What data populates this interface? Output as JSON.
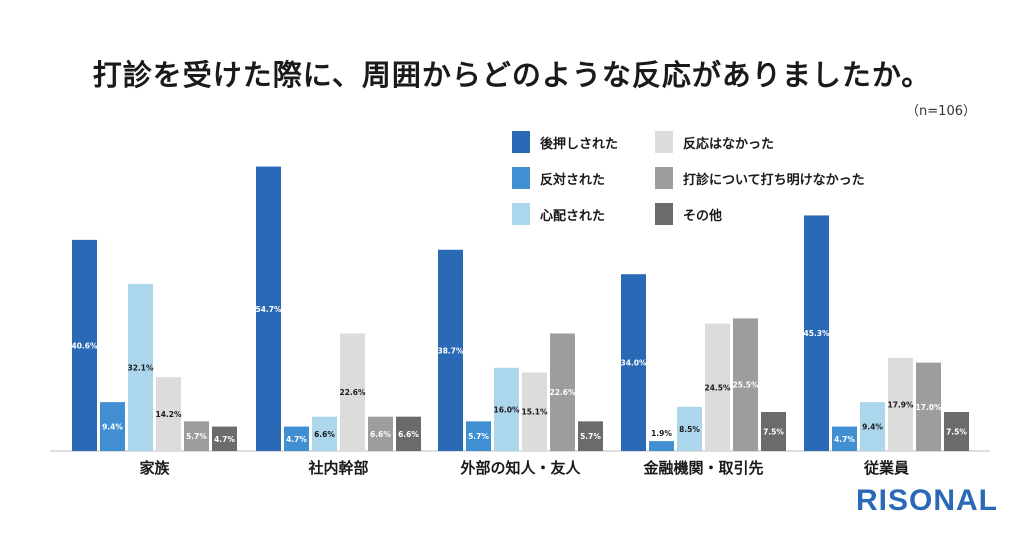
{
  "title": "打診を受けた際に、周囲からどのような反応がありましたか。",
  "sample_size": "（n=106）",
  "logo": "RISONAL",
  "chart_data": {
    "type": "bar",
    "ylim": [
      0,
      60
    ],
    "grid": false,
    "legend_position": "top-right",
    "categories": [
      "家族",
      "社内幹部",
      "外部の知人・友人",
      "金融機関・取引先",
      "従業員"
    ],
    "series": [
      {
        "name": "後押しされた",
        "color": "#2a69b5",
        "label_color": "#ffffff",
        "values": [
          40.6,
          54.7,
          38.7,
          34.0,
          45.3
        ]
      },
      {
        "name": "反対された",
        "color": "#3f8fd2",
        "label_color": "#ffffff",
        "values": [
          9.4,
          4.7,
          5.7,
          1.9,
          4.7
        ]
      },
      {
        "name": "心配された",
        "color": "#acd6ec",
        "label_color": "#1a1a1a",
        "values": [
          32.1,
          6.6,
          16.0,
          8.5,
          9.4
        ]
      },
      {
        "name": "反応はなかった",
        "color": "#dcdcdc",
        "label_color": "#1a1a1a",
        "values": [
          14.2,
          22.6,
          15.1,
          24.5,
          17.9
        ]
      },
      {
        "name": "打診について打ち明けなかった",
        "color": "#9d9d9d",
        "label_color": "#ffffff",
        "values": [
          5.7,
          6.6,
          22.6,
          25.5,
          17.0
        ]
      },
      {
        "name": "その他",
        "color": "#6b6b6b",
        "label_color": "#ffffff",
        "values": [
          4.7,
          6.6,
          5.7,
          7.5,
          7.5
        ]
      }
    ],
    "value_format": "{v}%"
  }
}
